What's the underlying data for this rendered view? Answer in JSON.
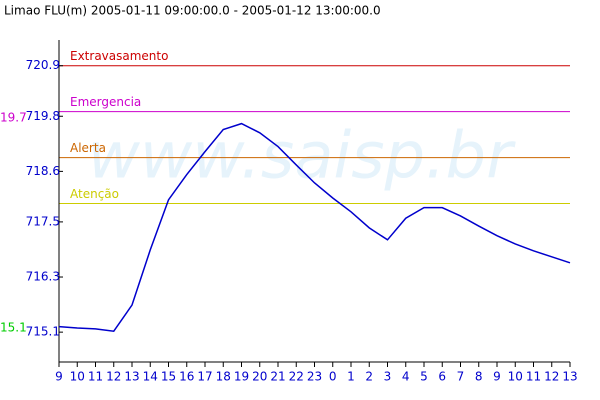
{
  "chart_data": {
    "type": "line",
    "title": "Limao FLU(m) 2005-01-11 09:00:00.0 - 2005-01-12 13:00:00.0",
    "watermark": "www.saisp.br",
    "categories": [
      "9",
      "10",
      "11",
      "12",
      "13",
      "14",
      "15",
      "16",
      "17",
      "18",
      "19",
      "20",
      "21",
      "22",
      "23",
      "0",
      "1",
      "2",
      "3",
      "4",
      "5",
      "6",
      "7",
      "8",
      "9",
      "10",
      "11",
      "12",
      "13"
    ],
    "series": [
      {
        "name": "Limao FLU(m)",
        "color": "#0000cc",
        "values": [
          715.22,
          715.19,
          715.17,
          715.12,
          715.69,
          716.89,
          717.98,
          718.53,
          719.03,
          719.51,
          719.64,
          719.44,
          719.14,
          718.74,
          718.35,
          718.02,
          717.72,
          717.37,
          717.11,
          717.58,
          717.81,
          717.81,
          717.63,
          717.41,
          717.2,
          717.02,
          716.87,
          716.74,
          716.61
        ]
      }
    ],
    "ylim": [
      714.45,
      721.46
    ],
    "yticks": [
      715.1,
      716.3,
      717.5,
      718.6,
      719.8,
      720.9
    ],
    "tick_color": "#0000cc",
    "thresholds": [
      {
        "label": "Extravasamento",
        "value": 720.9,
        "color": "#cc0000"
      },
      {
        "label": "Emergencia",
        "value": 719.9,
        "color": "#cc00cc"
      },
      {
        "label": "Alerta",
        "value": 718.9,
        "color": "#cc6600"
      },
      {
        "label": "Atenção",
        "value": 717.9,
        "color": "#cccc00"
      }
    ],
    "max_label": {
      "text": "19.7",
      "color": "#cc00cc"
    },
    "min_label": {
      "text": "15.1",
      "color": "#00cc00"
    }
  }
}
